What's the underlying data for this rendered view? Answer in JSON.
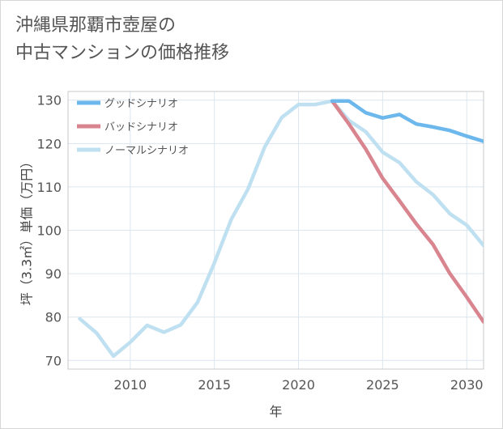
{
  "title": {
    "line1": "沖縄県那覇市壺屋の",
    "line2": "中古マンションの価格推移"
  },
  "chart_data": {
    "type": "line",
    "xlabel": "年",
    "ylabel": "坪（3.3㎡）単価（万円）",
    "xlim": [
      2006.3,
      2031
    ],
    "ylim": [
      68,
      132
    ],
    "x_ticks": [
      2010,
      2015,
      2020,
      2025,
      2030
    ],
    "y_ticks": [
      70,
      80,
      90,
      100,
      110,
      120,
      130
    ],
    "grid": true,
    "legend_position": "top-left",
    "series": [
      {
        "name": "グッドシナリオ",
        "color": "#6cb8ec",
        "x": [
          2022,
          2023,
          2024,
          2025,
          2026,
          2027,
          2028,
          2029,
          2030,
          2031
        ],
        "values": [
          129.8,
          129.8,
          127.1,
          125.9,
          126.7,
          124.5,
          123.8,
          123.0,
          121.7,
          120.5
        ]
      },
      {
        "name": "バッドシナリオ",
        "color": "#d9858f",
        "x": [
          2022,
          2023,
          2024,
          2025,
          2026,
          2027,
          2028,
          2029,
          2030,
          2031
        ],
        "values": [
          129.8,
          124.5,
          118.7,
          112.0,
          106.8,
          101.5,
          96.7,
          90.0,
          84.6,
          78.9
        ]
      },
      {
        "name": "ノーマルシナリオ",
        "color": "#bfe0f1",
        "x": [
          2007,
          2008,
          2009,
          2010,
          2011,
          2012,
          2013,
          2014,
          2015,
          2016,
          2017,
          2018,
          2019,
          2020,
          2021,
          2022,
          2023,
          2024,
          2025,
          2026,
          2027,
          2028,
          2029,
          2030,
          2031
        ],
        "values": [
          79.6,
          76.3,
          71.0,
          74.2,
          78.1,
          76.5,
          78.2,
          83.4,
          92.5,
          102.5,
          109.5,
          119.3,
          126.0,
          129.0,
          129.0,
          129.8,
          125.3,
          122.7,
          118.0,
          115.6,
          111.2,
          108.2,
          103.8,
          101.2,
          96.5
        ]
      }
    ]
  }
}
